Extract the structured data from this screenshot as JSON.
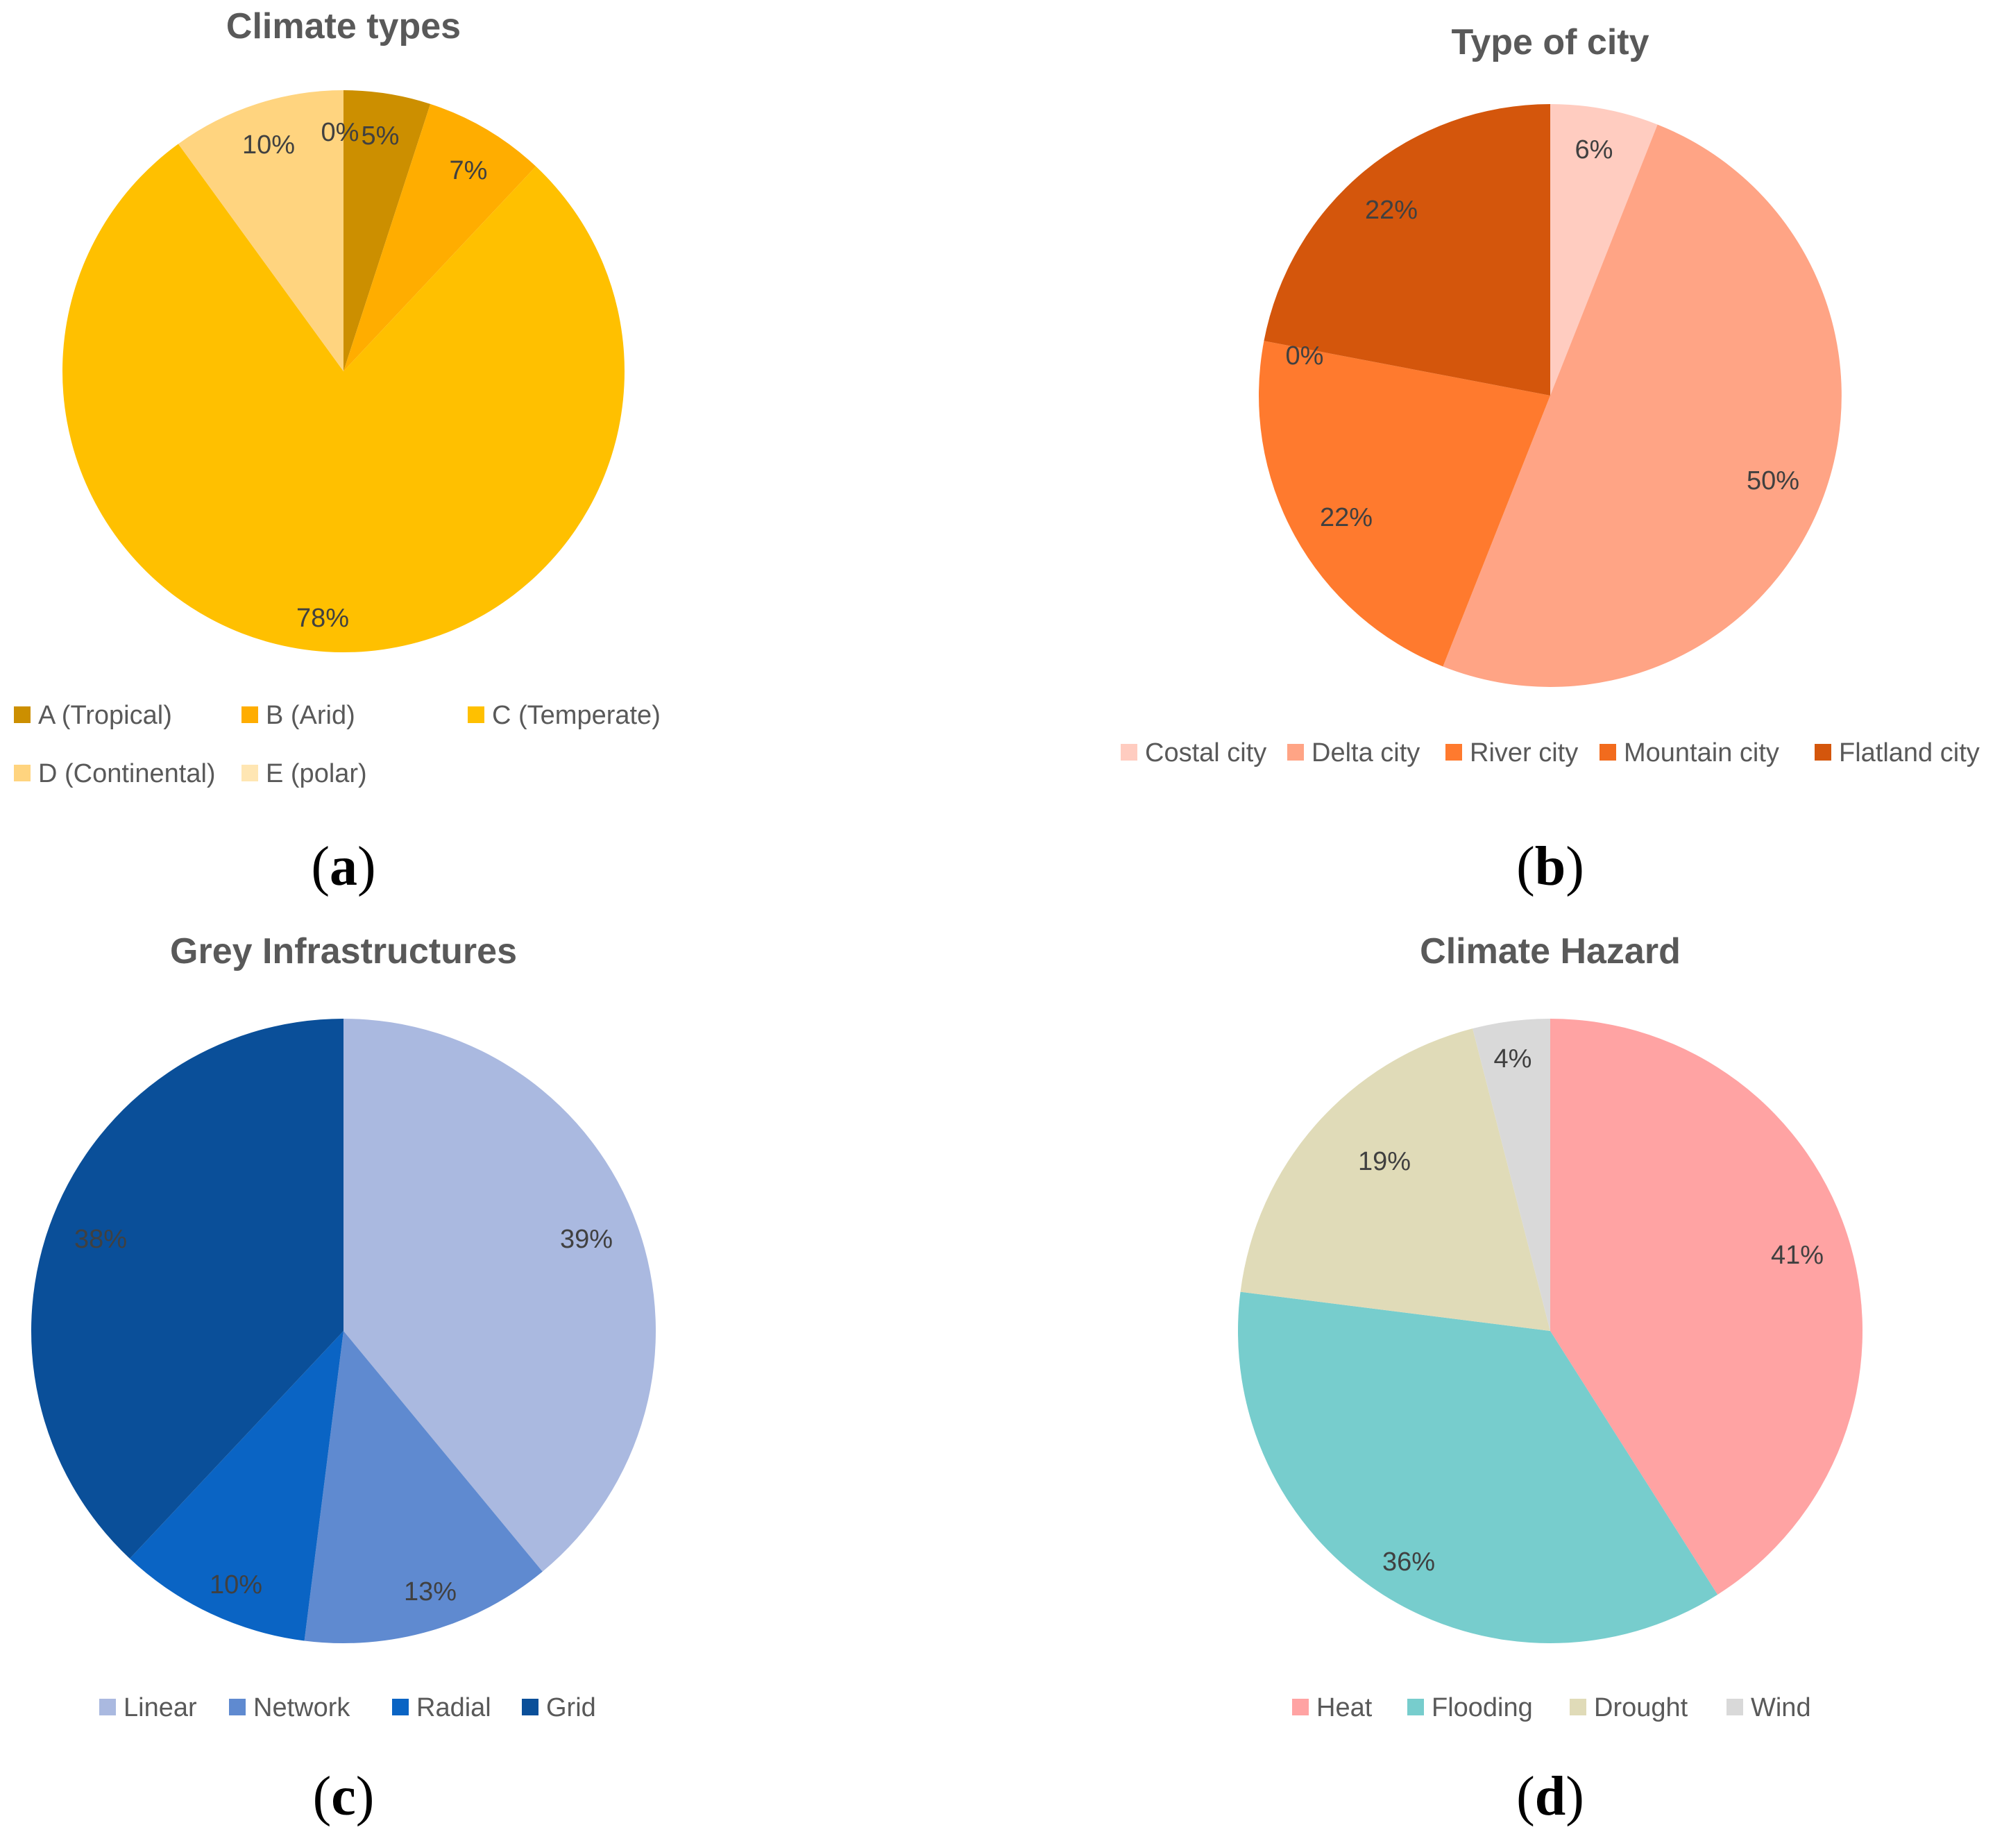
{
  "chart_data": [
    {
      "type": "pie",
      "title": "Climate types",
      "panel_label": "a",
      "slices": [
        {
          "label": "A (Tropical)",
          "value": 5,
          "display": "5%",
          "color": "#cc8f00"
        },
        {
          "label": "B (Arid)",
          "value": 7,
          "display": "7%",
          "color": "#ffad00"
        },
        {
          "label": "C (Temperate)",
          "value": 78,
          "display": "78%",
          "color": "#ffc000"
        },
        {
          "label": "D (Continental)",
          "value": 10,
          "display": "10%",
          "color": "#ffd47f"
        },
        {
          "label": "E (polar)",
          "value": 0,
          "display": "0%",
          "color": "#ffe6b3"
        }
      ]
    },
    {
      "type": "pie",
      "title": "Type of city",
      "panel_label": "b",
      "slices": [
        {
          "label": "Costal city",
          "value": 6,
          "display": "6%",
          "color": "#ffccc0"
        },
        {
          "label": "Delta city",
          "value": 50,
          "display": "50%",
          "color": "#ffa485"
        },
        {
          "label": "River city",
          "value": 22,
          "display": "22%",
          "color": "#ff7a2e"
        },
        {
          "label": "Mountain city",
          "value": 0,
          "display": "0%",
          "color": "#f26b1d"
        },
        {
          "label": "Flatland city",
          "value": 22,
          "display": "22%",
          "color": "#d4560c"
        }
      ]
    },
    {
      "type": "pie",
      "title": "Grey Infrastructures",
      "panel_label": "c",
      "slices": [
        {
          "label": "Linear",
          "value": 39,
          "display": "39%",
          "color": "#aab9e0"
        },
        {
          "label": "Network",
          "value": 13,
          "display": "13%",
          "color": "#5f8ad0"
        },
        {
          "label": "Radial",
          "value": 10,
          "display": "10%",
          "color": "#0a64c4"
        },
        {
          "label": "Grid",
          "value": 38,
          "display": "38%",
          "color": "#0a4f99"
        }
      ]
    },
    {
      "type": "pie",
      "title": "Climate Hazard",
      "panel_label": "d",
      "slices": [
        {
          "label": "Heat",
          "value": 41,
          "display": "41%",
          "color": "#ffa3a3"
        },
        {
          "label": "Flooding",
          "value": 36,
          "display": "36%",
          "color": "#77cdcd"
        },
        {
          "label": "Drought",
          "value": 19,
          "display": "19%",
          "color": "#e0dbb8"
        },
        {
          "label": "Wind",
          "value": 4,
          "display": "4%",
          "color": "#d9d9d9"
        }
      ]
    }
  ]
}
